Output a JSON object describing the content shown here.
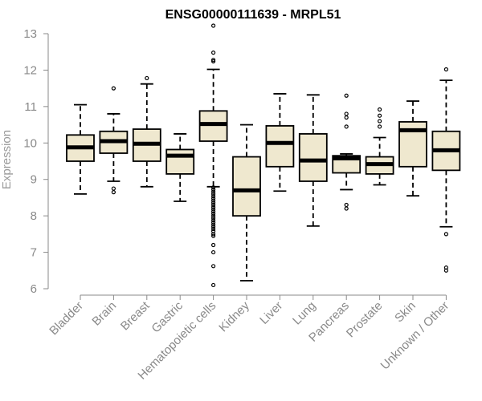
{
  "chart_data": {
    "type": "boxplot",
    "title": "ENSG00000111639 - MRPL51",
    "xlabel": "",
    "ylabel": "Expression",
    "ylim": [
      6,
      13
    ],
    "yticks": [
      6,
      7,
      8,
      9,
      10,
      11,
      12,
      13
    ],
    "box_color": "#efe8cf",
    "categories": [
      "Bladder",
      "Brain",
      "Breast",
      "Gastric",
      "Hematopoietic cells",
      "Kidney",
      "Liver",
      "Lung",
      "Pancreas",
      "Prostate",
      "Skin",
      "Unknown / Other"
    ],
    "boxes": [
      {
        "name": "Bladder",
        "min": 8.6,
        "q1": 9.5,
        "median": 9.88,
        "q3": 10.22,
        "max": 11.05,
        "outliers": []
      },
      {
        "name": "Brain",
        "min": 8.95,
        "q1": 9.72,
        "median": 10.05,
        "q3": 10.32,
        "max": 10.8,
        "outliers": [
          11.5,
          8.75,
          8.65
        ]
      },
      {
        "name": "Breast",
        "min": 8.8,
        "q1": 9.5,
        "median": 9.98,
        "q3": 10.38,
        "max": 11.62,
        "outliers": [
          11.78
        ]
      },
      {
        "name": "Gastric",
        "min": 8.4,
        "q1": 9.15,
        "median": 9.65,
        "q3": 9.82,
        "max": 10.25,
        "outliers": []
      },
      {
        "name": "Hematopoietic cells",
        "min": 8.8,
        "q1": 10.05,
        "median": 10.52,
        "q3": 10.88,
        "max": 12.02,
        "outliers": [
          13.22,
          12.48,
          12.28,
          12.24,
          8.78,
          8.72,
          8.66,
          8.6,
          8.54,
          8.48,
          8.42,
          8.36,
          8.3,
          8.24,
          8.18,
          8.12,
          8.06,
          8.0,
          7.94,
          7.88,
          7.82,
          7.76,
          7.7,
          7.64,
          7.58,
          7.5,
          7.45,
          7.2,
          7.0,
          6.62,
          6.1
        ]
      },
      {
        "name": "Kidney",
        "min": 6.22,
        "q1": 8.0,
        "median": 8.7,
        "q3": 9.62,
        "max": 10.5,
        "outliers": []
      },
      {
        "name": "Liver",
        "min": 8.68,
        "q1": 9.35,
        "median": 10.0,
        "q3": 10.47,
        "max": 11.35,
        "outliers": []
      },
      {
        "name": "Lung",
        "min": 7.72,
        "q1": 8.95,
        "median": 9.52,
        "q3": 10.25,
        "max": 11.32,
        "outliers": []
      },
      {
        "name": "Pancreas",
        "min": 8.72,
        "q1": 9.18,
        "median": 9.58,
        "q3": 9.65,
        "max": 9.7,
        "outliers": [
          11.3,
          10.8,
          10.7,
          10.45,
          8.3,
          8.2
        ]
      },
      {
        "name": "Prostate",
        "min": 8.85,
        "q1": 9.15,
        "median": 9.42,
        "q3": 9.62,
        "max": 10.15,
        "outliers": [
          10.92,
          10.75,
          10.6,
          10.45
        ]
      },
      {
        "name": "Skin",
        "min": 8.55,
        "q1": 9.35,
        "median": 10.35,
        "q3": 10.58,
        "max": 11.15,
        "outliers": []
      },
      {
        "name": "Unknown / Other",
        "min": 7.7,
        "q1": 9.25,
        "median": 9.8,
        "q3": 10.32,
        "max": 11.72,
        "outliers": [
          12.02,
          7.5,
          6.58,
          6.5
        ]
      }
    ]
  }
}
